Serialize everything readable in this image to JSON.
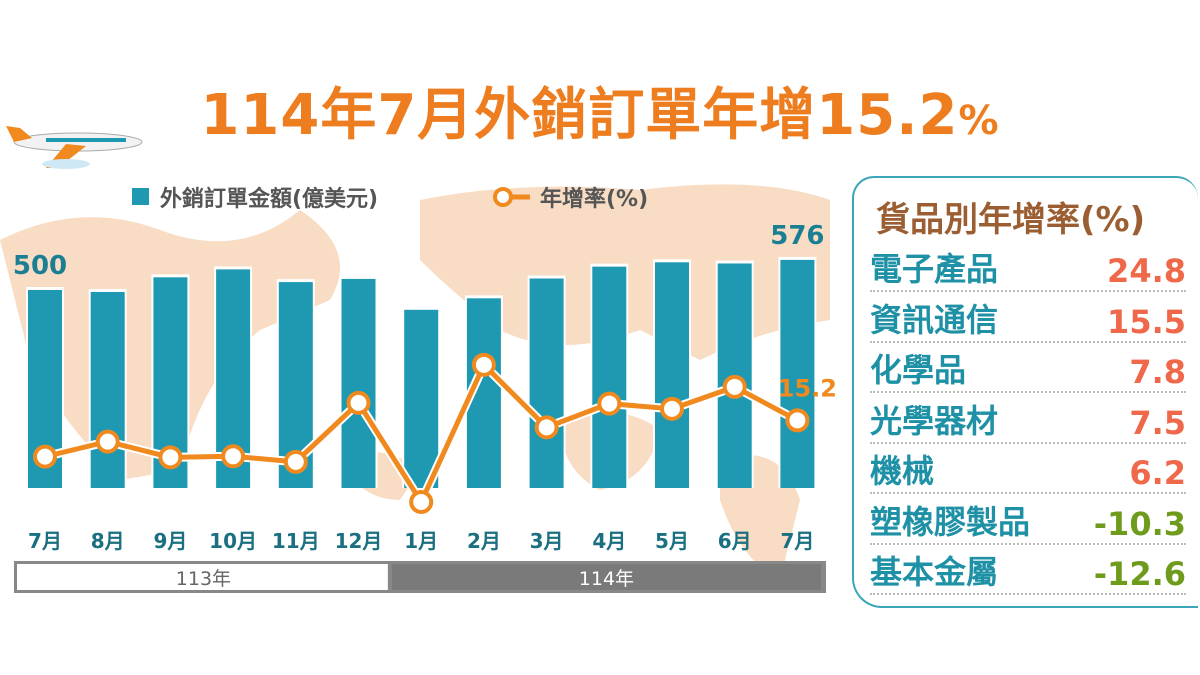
{
  "title": {
    "main": "114年7月外銷訂單年增15.2",
    "pct": "%"
  },
  "colors": {
    "bar": "#1f99b2",
    "line": "#f08a1e",
    "title": "#ee7d1f",
    "positive": "#f0684a",
    "negative": "#6f9b1c",
    "map": "#f8dcc3"
  },
  "chart_data": {
    "type": "bar+line",
    "legend": [
      {
        "name": "外銷訂單金額(億美元)",
        "type": "bar"
      },
      {
        "name": "年增率(%)",
        "type": "line"
      }
    ],
    "categories": [
      "7月",
      "8月",
      "9月",
      "10月",
      "11月",
      "12月",
      "1月",
      "2月",
      "3月",
      "4月",
      "5月",
      "6月",
      "7月"
    ],
    "year_groups": [
      {
        "label": "113年",
        "count": 6
      },
      {
        "label": "114年",
        "count": 7
      }
    ],
    "series": [
      {
        "name": "外銷訂單金額(億美元)",
        "values": [
          500,
          495,
          532,
          552,
          520,
          528,
          450,
          479,
          529,
          559,
          570,
          567,
          576
        ]
      },
      {
        "name": "年增率(%)",
        "values": [
          4.8,
          9.1,
          4.6,
          4.9,
          3.3,
          20.2,
          -8.2,
          31.1,
          13.2,
          20.0,
          18.5,
          24.8,
          15.2
        ]
      }
    ],
    "data_labels": {
      "first_bar": "500",
      "last_bar": "576",
      "last_rate": "15.2"
    },
    "legend_placement": "top",
    "grid": false
  },
  "panel": {
    "title": "貨品別年增率(%)",
    "items": [
      {
        "label": "電子產品",
        "value": "24.8"
      },
      {
        "label": "資訊通信",
        "value": "15.5"
      },
      {
        "label": "化學品",
        "value": "7.8"
      },
      {
        "label": "光學器材",
        "value": "7.5"
      },
      {
        "label": "機械",
        "value": "6.2"
      },
      {
        "label": "塑橡膠製品",
        "value": "-10.3"
      },
      {
        "label": "基本金屬",
        "value": "-12.6"
      }
    ]
  }
}
